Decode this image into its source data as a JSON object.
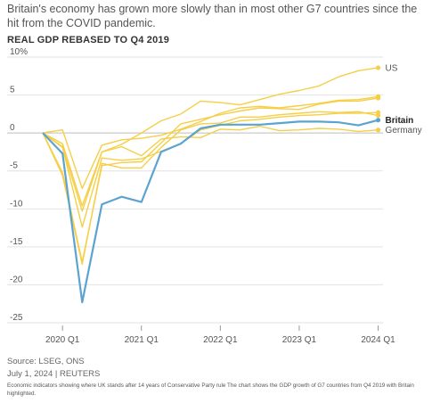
{
  "header": {
    "subtitle": "Britain's economy has grown more slowly than in most other G7 countries since the hit from the COVID pandemic.",
    "heading": "REAL GDP REBASED TO Q4 2019"
  },
  "footer": {
    "source": "Source: LSEG, ONS",
    "date": "July 1, 2024 | REUTERS",
    "caption": "Economic indicators showing where UK stands after 14 years of Conservative Party rule The chart shows the GDP growth of G7 countries from Q4 2019 with Britain highlighted."
  },
  "colors": {
    "highlight": "#5ba3d0",
    "others": "#f5cf47",
    "grid": "#e2e2e2",
    "zero": "#bdbdbd"
  },
  "chart_data": {
    "type": "line",
    "title": "REAL GDP REBASED TO Q4 2019",
    "x": [
      "2019 Q4",
      "2020 Q1",
      "2020 Q2",
      "2020 Q3",
      "2020 Q4",
      "2021 Q1",
      "2021 Q2",
      "2021 Q3",
      "2021 Q4",
      "2022 Q1",
      "2022 Q2",
      "2022 Q3",
      "2022 Q4",
      "2023 Q1",
      "2023 Q2",
      "2023 Q3",
      "2023 Q4",
      "2024 Q1"
    ],
    "xticks": [
      {
        "label": "2020 Q1",
        "index": 1
      },
      {
        "label": "2021 Q1",
        "index": 5
      },
      {
        "label": "2022 Q1",
        "index": 9
      },
      {
        "label": "2023 Q1",
        "index": 13
      },
      {
        "label": "2024 Q1",
        "index": 17
      }
    ],
    "yticks": [
      {
        "value": 10,
        "label": "10%"
      },
      {
        "value": 5,
        "label": "5"
      },
      {
        "value": 0,
        "label": "0"
      },
      {
        "value": -5,
        "label": "-5"
      },
      {
        "value": -10,
        "label": "-10"
      },
      {
        "value": -15,
        "label": "-15"
      },
      {
        "value": -20,
        "label": "-20"
      },
      {
        "value": -25,
        "label": "-25"
      }
    ],
    "ylim": [
      -25,
      10
    ],
    "series": [
      {
        "name": "US",
        "highlight": false,
        "values": [
          0,
          -1.4,
          -9.6,
          -2.5,
          -1.5,
          0.0,
          1.6,
          2.5,
          4.2,
          4.0,
          3.7,
          4.4,
          5.1,
          5.6,
          6.2,
          7.4,
          8.2,
          8.6
        ]
      },
      {
        "name": "",
        "highlight": false,
        "values": [
          0,
          0.4,
          -7.3,
          -1.6,
          -0.9,
          -0.7,
          -0.3,
          0.5,
          1.5,
          2.6,
          3.3,
          3.5,
          3.3,
          3.6,
          3.9,
          4.3,
          4.4,
          4.8
        ]
      },
      {
        "name": "",
        "highlight": false,
        "values": [
          0,
          -5.2,
          -17.0,
          -4.3,
          -3.9,
          -3.8,
          -1.3,
          1.2,
          1.8,
          2.4,
          2.9,
          3.3,
          3.2,
          3.1,
          3.8,
          4.2,
          4.2,
          4.6
        ]
      },
      {
        "name": "",
        "highlight": false,
        "values": [
          0,
          -1.9,
          -12.4,
          -3.3,
          -3.6,
          -3.4,
          -2.4,
          -1.4,
          0.4,
          1.0,
          1.6,
          1.8,
          2.1,
          2.3,
          2.4,
          2.6,
          2.6,
          2.7
        ]
      },
      {
        "name": "",
        "highlight": false,
        "values": [
          0,
          -5.6,
          -17.3,
          -4.0,
          -4.6,
          -4.6,
          -1.9,
          0.4,
          1.2,
          1.3,
          2.1,
          2.1,
          2.4,
          2.6,
          2.8,
          2.7,
          2.8,
          2.3
        ]
      },
      {
        "name": "Germany",
        "highlight": false,
        "values": [
          0,
          -1.8,
          -10.3,
          -2.5,
          -1.8,
          -3.0,
          -0.8,
          -0.5,
          -0.6,
          0.5,
          0.4,
          0.9,
          0.3,
          0.4,
          0.6,
          0.5,
          0.2,
          0.4
        ]
      },
      {
        "name": "Britain",
        "highlight": true,
        "values": [
          0,
          -2.7,
          -22.3,
          -9.4,
          -8.4,
          -9.1,
          -2.5,
          -1.4,
          0.6,
          1.1,
          1.1,
          1.1,
          1.3,
          1.5,
          1.5,
          1.4,
          1.0,
          1.7
        ]
      }
    ],
    "legend": "direct labels at line ends"
  }
}
